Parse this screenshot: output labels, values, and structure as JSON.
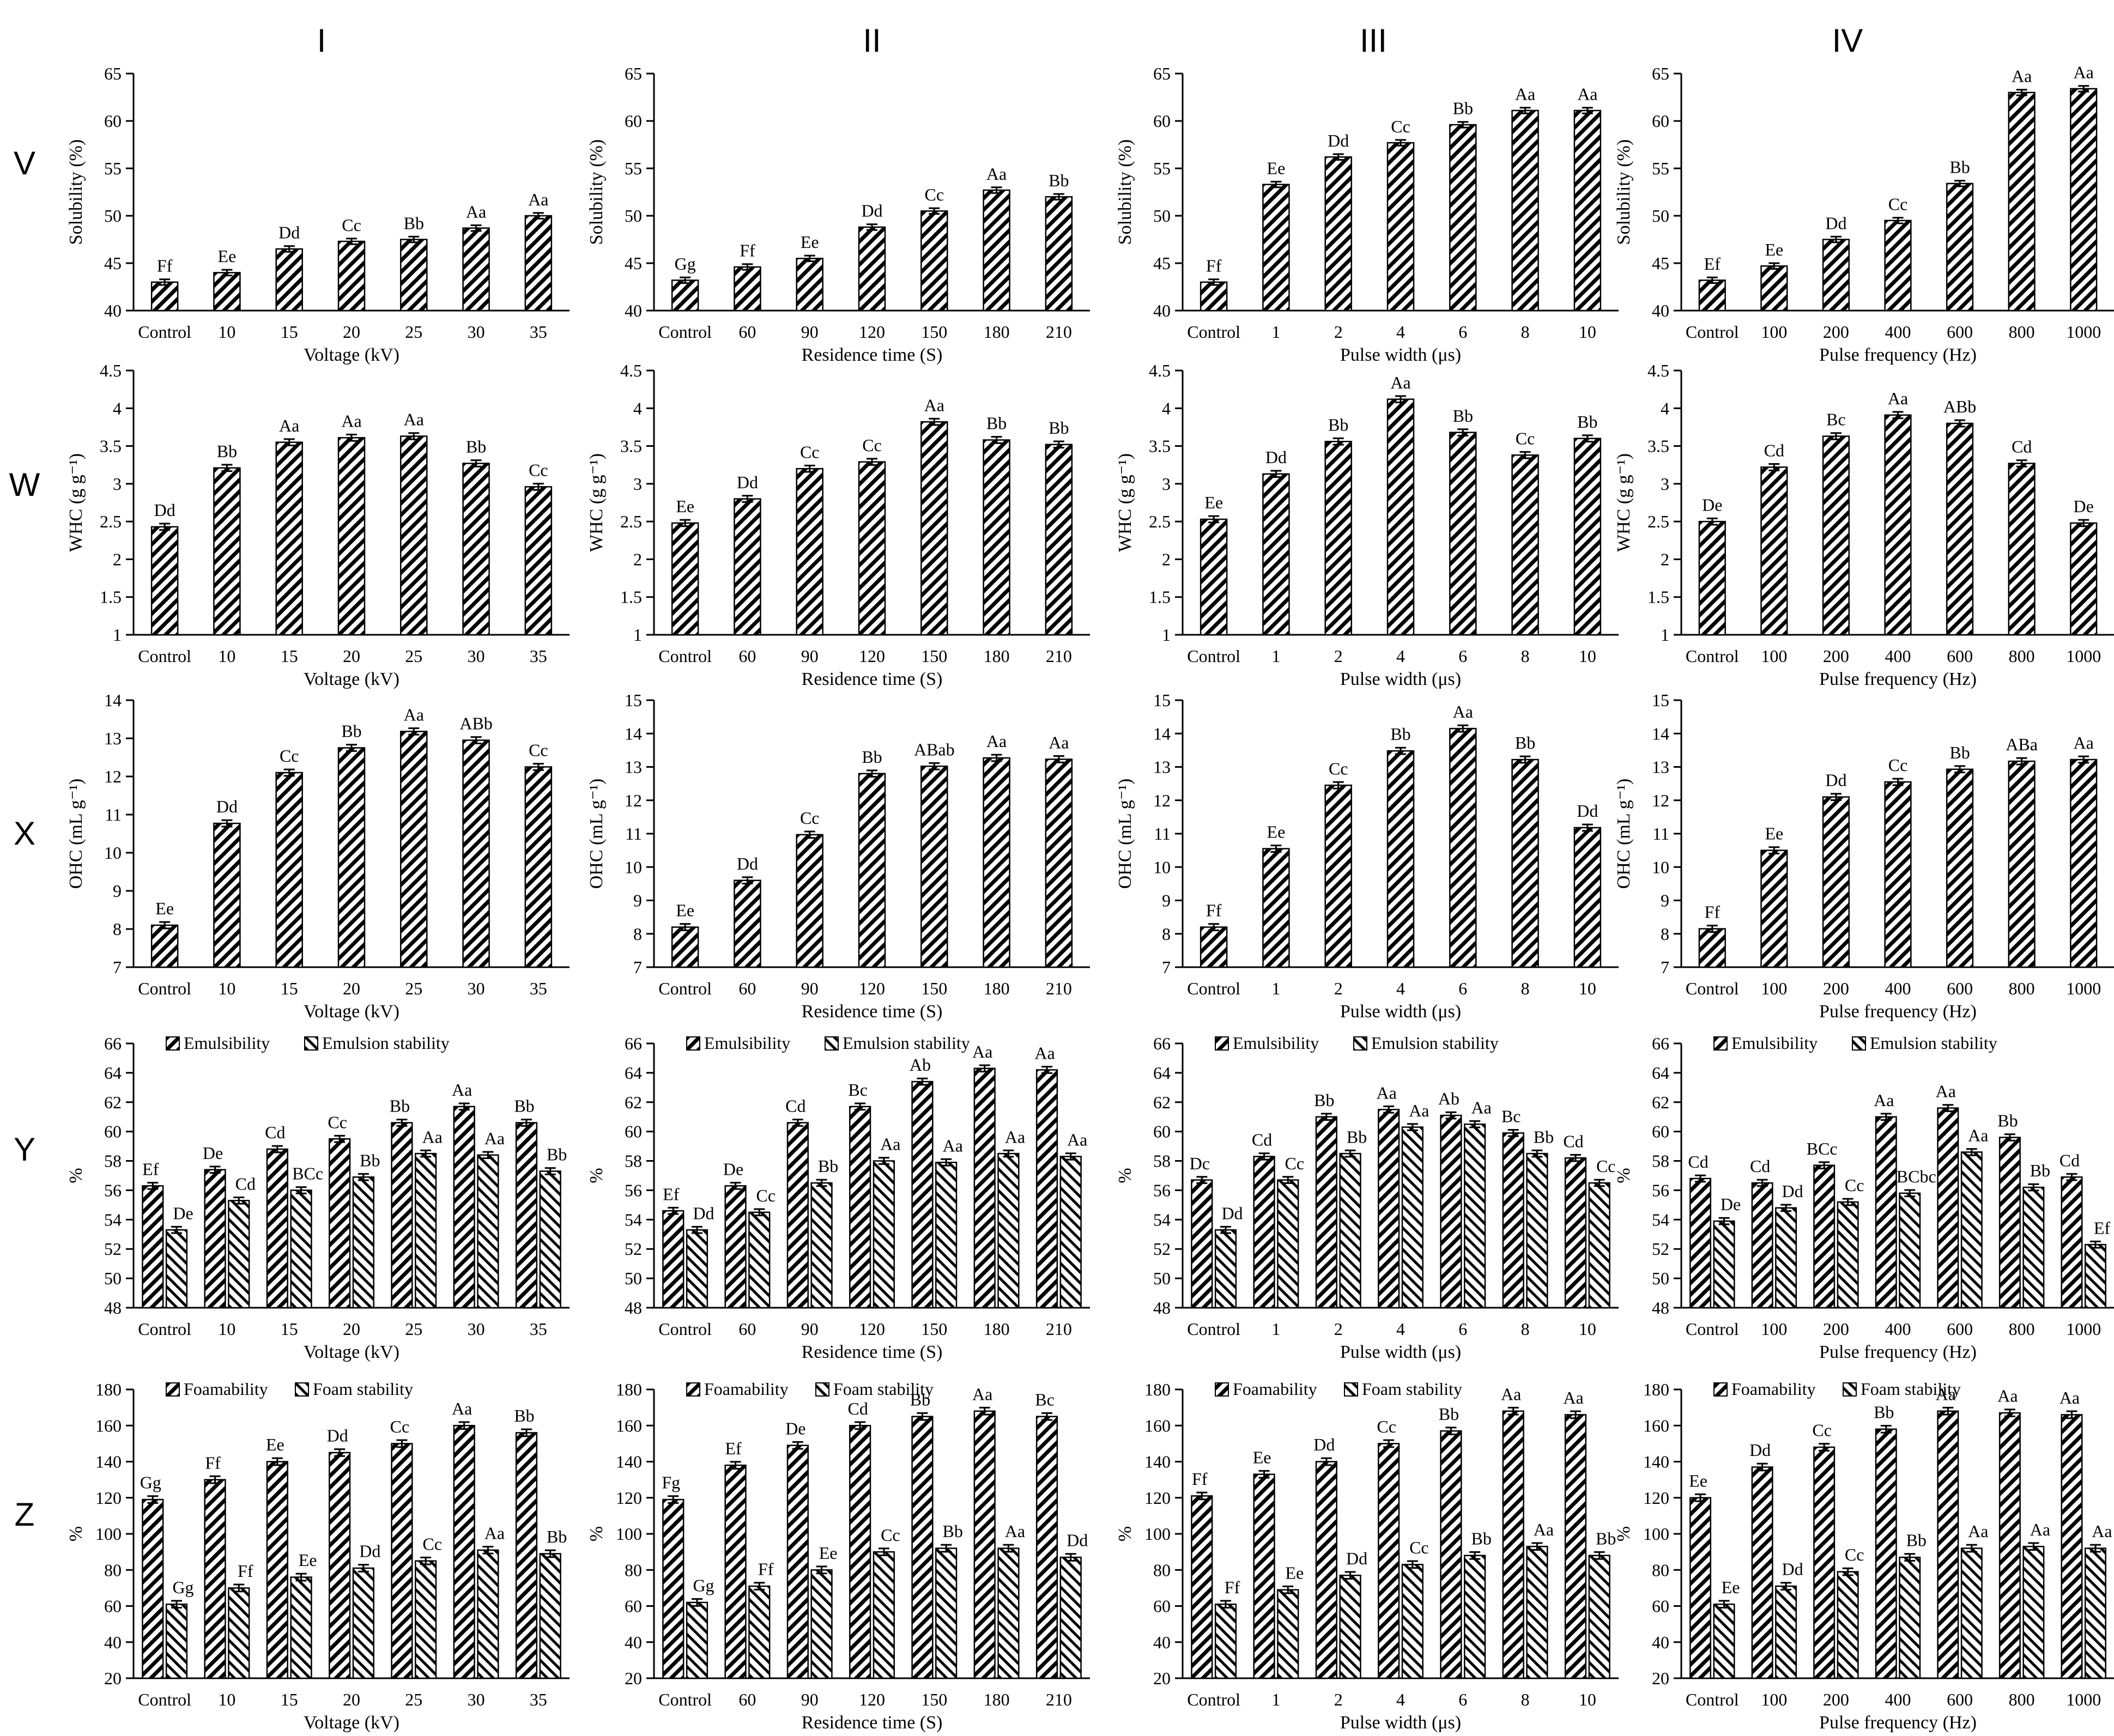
{
  "column_headers": [
    "I",
    "II",
    "III",
    "IV"
  ],
  "row_headers": [
    "V",
    "W",
    "X",
    "Y",
    "Z"
  ],
  "pattern_colors": {
    "bar": "#ffffff",
    "stroke": "#000000"
  },
  "chart_data": [
    {
      "type": "bar",
      "title": "",
      "xlabel": "Voltage (kV)",
      "ylabel": "Solubility (%)",
      "ylim": [
        40,
        65
      ],
      "yticks": [
        40,
        45,
        50,
        55,
        60,
        65
      ],
      "categories": [
        "Control",
        "10",
        "15",
        "20",
        "25",
        "30",
        "35"
      ],
      "series": [
        {
          "values": [
            43.0,
            44.0,
            46.5,
            47.3,
            47.5,
            48.7,
            50.0
          ],
          "labels": [
            "Ff",
            "Ee",
            "Dd",
            "Cc",
            "Bb",
            "Aa",
            "Aa"
          ]
        }
      ]
    },
    {
      "type": "bar",
      "title": "",
      "xlabel": "Residence time (S)",
      "ylabel": "Solubility (%)",
      "ylim": [
        40,
        65
      ],
      "yticks": [
        40,
        45,
        50,
        55,
        60,
        65
      ],
      "categories": [
        "Control",
        "60",
        "90",
        "120",
        "150",
        "180",
        "210"
      ],
      "series": [
        {
          "values": [
            43.2,
            44.6,
            45.5,
            48.8,
            50.5,
            52.7,
            52.0
          ],
          "labels": [
            "Gg",
            "Ff",
            "Ee",
            "Dd",
            "Cc",
            "Aa",
            "Bb"
          ]
        }
      ]
    },
    {
      "type": "bar",
      "title": "",
      "xlabel": "Pulse width (μs)",
      "ylabel": "Solubility (%)",
      "ylim": [
        40,
        65
      ],
      "yticks": [
        40,
        45,
        50,
        55,
        60,
        65
      ],
      "categories": [
        "Control",
        "1",
        "2",
        "4",
        "6",
        "8",
        "10"
      ],
      "series": [
        {
          "values": [
            43.0,
            53.3,
            56.2,
            57.7,
            59.6,
            61.1,
            61.1
          ],
          "labels": [
            "Ff",
            "Ee",
            "Dd",
            "Cc",
            "Bb",
            "Aa",
            "Aa"
          ]
        }
      ]
    },
    {
      "type": "bar",
      "title": "",
      "xlabel": "Pulse frequency (Hz)",
      "ylabel": "Solubility (%)",
      "ylim": [
        40,
        65
      ],
      "yticks": [
        40,
        45,
        50,
        55,
        60,
        65
      ],
      "categories": [
        "Control",
        "100",
        "200",
        "400",
        "600",
        "800",
        "1000"
      ],
      "series": [
        {
          "values": [
            43.2,
            44.7,
            47.5,
            49.5,
            53.4,
            63.0,
            63.4
          ],
          "labels": [
            "Ef",
            "Ee",
            "Dd",
            "Cc",
            "Bb",
            "Aa",
            "Aa"
          ]
        }
      ]
    },
    {
      "type": "bar",
      "title": "",
      "xlabel": "Voltage (kV)",
      "ylabel": "WHC (g g⁻¹)",
      "ylim": [
        1,
        4.5
      ],
      "yticks": [
        1,
        1.5,
        2,
        2.5,
        3,
        3.5,
        4,
        4.5
      ],
      "categories": [
        "Control",
        "10",
        "15",
        "20",
        "25",
        "30",
        "35"
      ],
      "series": [
        {
          "values": [
            2.43,
            3.21,
            3.55,
            3.61,
            3.63,
            3.27,
            2.96
          ],
          "labels": [
            "Dd",
            "Bb",
            "Aa",
            "Aa",
            "Aa",
            "Bb",
            "Cc"
          ]
        }
      ]
    },
    {
      "type": "bar",
      "title": "",
      "xlabel": "Residence time (S)",
      "ylabel": "WHC (g g⁻¹)",
      "ylim": [
        1,
        4.5
      ],
      "yticks": [
        1,
        1.5,
        2,
        2.5,
        3,
        3.5,
        4,
        4.5
      ],
      "categories": [
        "Control",
        "60",
        "90",
        "120",
        "150",
        "180",
        "210"
      ],
      "series": [
        {
          "values": [
            2.48,
            2.8,
            3.2,
            3.29,
            3.82,
            3.58,
            3.52
          ],
          "labels": [
            "Ee",
            "Dd",
            "Cc",
            "Cc",
            "Aa",
            "Bb",
            "Bb"
          ]
        }
      ]
    },
    {
      "type": "bar",
      "title": "",
      "xlabel": "Pulse width (μs)",
      "ylabel": "WHC (g g⁻¹)",
      "ylim": [
        1,
        4.5
      ],
      "yticks": [
        1,
        1.5,
        2,
        2.5,
        3,
        3.5,
        4,
        4.5
      ],
      "categories": [
        "Control",
        "1",
        "2",
        "4",
        "6",
        "8",
        "10"
      ],
      "series": [
        {
          "values": [
            2.53,
            3.13,
            3.56,
            4.12,
            3.68,
            3.38,
            3.6
          ],
          "labels": [
            "Ee",
            "Dd",
            "Bb",
            "Aa",
            "Bb",
            "Cc",
            "Bb"
          ]
        }
      ]
    },
    {
      "type": "bar",
      "title": "",
      "xlabel": "Pulse frequency (Hz)",
      "ylabel": "WHC (g g⁻¹)",
      "ylim": [
        1,
        4.5
      ],
      "yticks": [
        1,
        1.5,
        2,
        2.5,
        3,
        3.5,
        4,
        4.5
      ],
      "categories": [
        "Control",
        "100",
        "200",
        "400",
        "600",
        "800",
        "1000"
      ],
      "series": [
        {
          "values": [
            2.5,
            3.22,
            3.63,
            3.91,
            3.8,
            3.27,
            2.48
          ],
          "labels": [
            "De",
            "Cd",
            "Bc",
            "Aa",
            "ABb",
            "Cd",
            "De"
          ]
        }
      ]
    },
    {
      "type": "bar",
      "title": "",
      "xlabel": "Voltage (kV)",
      "ylabel": "OHC (mL g⁻¹)",
      "ylim": [
        7,
        14
      ],
      "yticks": [
        7,
        8,
        9,
        10,
        11,
        12,
        13,
        14
      ],
      "categories": [
        "Control",
        "10",
        "15",
        "20",
        "25",
        "30",
        "35"
      ],
      "series": [
        {
          "values": [
            8.1,
            10.77,
            12.1,
            12.75,
            13.18,
            12.95,
            12.25
          ],
          "labels": [
            "Ee",
            "Dd",
            "Cc",
            "Bb",
            "Aa",
            "ABb",
            "Cc"
          ]
        }
      ]
    },
    {
      "type": "bar",
      "title": "",
      "xlabel": "Residence time (S)",
      "ylabel": "OHC (mL g⁻¹)",
      "ylim": [
        7,
        15
      ],
      "yticks": [
        7,
        8,
        9,
        10,
        11,
        12,
        13,
        14,
        15
      ],
      "categories": [
        "Control",
        "60",
        "90",
        "120",
        "150",
        "180",
        "210"
      ],
      "series": [
        {
          "values": [
            8.2,
            9.6,
            10.97,
            12.8,
            13.02,
            13.27,
            13.23
          ],
          "labels": [
            "Ee",
            "Dd",
            "Cc",
            "Bb",
            "ABab",
            "Aa",
            "Aa"
          ]
        }
      ]
    },
    {
      "type": "bar",
      "title": "",
      "xlabel": "Pulse width (μs)",
      "ylabel": "OHC (mL g⁻¹)",
      "ylim": [
        7,
        15
      ],
      "yticks": [
        7,
        8,
        9,
        10,
        11,
        12,
        13,
        14,
        15
      ],
      "categories": [
        "Control",
        "1",
        "2",
        "4",
        "6",
        "8",
        "10"
      ],
      "series": [
        {
          "values": [
            8.2,
            10.55,
            12.45,
            13.48,
            14.15,
            13.22,
            11.18
          ],
          "labels": [
            "Ff",
            "Ee",
            "Cc",
            "Bb",
            "Aa",
            "Bb",
            "Dd"
          ]
        }
      ]
    },
    {
      "type": "bar",
      "title": "",
      "xlabel": "Pulse frequency (Hz)",
      "ylabel": "OHC (mL g⁻¹)",
      "ylim": [
        7,
        15
      ],
      "yticks": [
        7,
        8,
        9,
        10,
        11,
        12,
        13,
        14,
        15
      ],
      "categories": [
        "Control",
        "100",
        "200",
        "400",
        "600",
        "800",
        "1000"
      ],
      "series": [
        {
          "values": [
            8.15,
            10.5,
            12.1,
            12.55,
            12.93,
            13.17,
            13.22
          ],
          "labels": [
            "Ff",
            "Ee",
            "Dd",
            "Cc",
            "Bb",
            "ABa",
            "Aa"
          ]
        }
      ]
    },
    {
      "type": "bar",
      "title": "",
      "xlabel": "Voltage (kV)",
      "ylabel": "%",
      "ylim": [
        48,
        66
      ],
      "yticks": [
        48,
        50,
        52,
        54,
        56,
        58,
        60,
        62,
        64,
        66
      ],
      "categories": [
        "Control",
        "10",
        "15",
        "20",
        "25",
        "30",
        "35"
      ],
      "series": [
        {
          "name": "Emulsibility",
          "values": [
            56.3,
            57.4,
            58.8,
            59.5,
            60.6,
            61.7,
            60.6
          ],
          "labels": [
            "Ef",
            "De",
            "Cd",
            "Cc",
            "Bb",
            "Aa",
            "Bb"
          ]
        },
        {
          "name": "Emulsion stability",
          "values": [
            53.3,
            55.3,
            56.0,
            56.9,
            58.5,
            58.4,
            57.3
          ],
          "labels": [
            "De",
            "Cd",
            "BCc",
            "Bb",
            "Aa",
            "Aa",
            "Bb"
          ]
        }
      ]
    },
    {
      "type": "bar",
      "title": "",
      "xlabel": "Residence time (S)",
      "ylabel": "%",
      "ylim": [
        48,
        66
      ],
      "yticks": [
        48,
        50,
        52,
        54,
        56,
        58,
        60,
        62,
        64,
        66
      ],
      "categories": [
        "Control",
        "60",
        "90",
        "120",
        "150",
        "180",
        "210"
      ],
      "series": [
        {
          "name": "Emulsibility",
          "values": [
            54.6,
            56.3,
            60.6,
            61.7,
            63.4,
            64.3,
            64.2
          ],
          "labels": [
            "Ef",
            "De",
            "Cd",
            "Bc",
            "Ab",
            "Aa",
            "Aa"
          ]
        },
        {
          "name": "Emulsion stability",
          "values": [
            53.3,
            54.5,
            56.5,
            58.0,
            57.9,
            58.5,
            58.3
          ],
          "labels": [
            "Dd",
            "Cc",
            "Bb",
            "Aa",
            "Aa",
            "Aa",
            "Aa"
          ]
        }
      ]
    },
    {
      "type": "bar",
      "title": "",
      "xlabel": "Pulse width (μs)",
      "ylabel": "%",
      "ylim": [
        48,
        66
      ],
      "yticks": [
        48,
        50,
        52,
        54,
        56,
        58,
        60,
        62,
        64,
        66
      ],
      "categories": [
        "Control",
        "1",
        "2",
        "4",
        "6",
        "8",
        "10"
      ],
      "series": [
        {
          "name": "Emulsibility",
          "values": [
            56.7,
            58.3,
            61.0,
            61.5,
            61.1,
            59.9,
            58.2
          ],
          "labels": [
            "Dc",
            "Cd",
            "Bb",
            "Aa",
            "Ab",
            "Bc",
            "Cd"
          ]
        },
        {
          "name": "Emulsion stability",
          "values": [
            53.3,
            56.7,
            58.5,
            60.3,
            60.5,
            58.5,
            56.5
          ],
          "labels": [
            "Dd",
            "Cc",
            "Bb",
            "Aa",
            "Aa",
            "Bb",
            "Cc"
          ]
        }
      ]
    },
    {
      "type": "bar",
      "title": "",
      "xlabel": "Pulse frequency (Hz)",
      "ylabel": "%",
      "ylim": [
        48,
        66
      ],
      "yticks": [
        48,
        50,
        52,
        54,
        56,
        58,
        60,
        62,
        64,
        66
      ],
      "categories": [
        "Control",
        "100",
        "200",
        "400",
        "600",
        "800",
        "1000"
      ],
      "series": [
        {
          "name": "Emulsibility",
          "values": [
            56.8,
            56.5,
            57.7,
            61.0,
            61.6,
            59.6,
            56.9
          ],
          "labels": [
            "Cd",
            "Cd",
            "BCc",
            "Aa",
            "Aa",
            "Bb",
            "Cd"
          ]
        },
        {
          "name": "Emulsion stability",
          "values": [
            53.9,
            54.8,
            55.2,
            55.8,
            58.6,
            56.2,
            52.3
          ],
          "labels": [
            "De",
            "Dd",
            "Cc",
            "BCbc",
            "Aa",
            "Bb",
            "Ef"
          ]
        }
      ]
    },
    {
      "type": "bar",
      "title": "",
      "xlabel": "Voltage (kV)",
      "ylabel": "%",
      "ylim": [
        20,
        180
      ],
      "yticks": [
        20,
        40,
        60,
        80,
        100,
        120,
        140,
        160,
        180
      ],
      "categories": [
        "Control",
        "10",
        "15",
        "20",
        "25",
        "30",
        "35"
      ],
      "series": [
        {
          "name": "Foamability",
          "values": [
            119,
            130,
            140,
            145,
            150,
            160,
            156
          ],
          "labels": [
            "Gg",
            "Ff",
            "Ee",
            "Dd",
            "Cc",
            "Aa",
            "Bb"
          ]
        },
        {
          "name": "Foam stability",
          "values": [
            61,
            70,
            76,
            81,
            85,
            91,
            89
          ],
          "labels": [
            "Gg",
            "Ff",
            "Ee",
            "Dd",
            "Cc",
            "Aa",
            "Bb"
          ]
        }
      ]
    },
    {
      "type": "bar",
      "title": "",
      "xlabel": "Residence time (S)",
      "ylabel": "%",
      "ylim": [
        20,
        180
      ],
      "yticks": [
        20,
        40,
        60,
        80,
        100,
        120,
        140,
        160,
        180
      ],
      "categories": [
        "Control",
        "60",
        "90",
        "120",
        "150",
        "180",
        "210"
      ],
      "series": [
        {
          "name": "Foamability",
          "values": [
            119,
            138,
            149,
            160,
            165,
            168,
            165
          ],
          "labels": [
            "Fg",
            "Ef",
            "De",
            "Cd",
            "Bb",
            "Aa",
            "Bc"
          ]
        },
        {
          "name": "Foam stability",
          "values": [
            62,
            71,
            80,
            90,
            92,
            92,
            87
          ],
          "labels": [
            "Gg",
            "Ff",
            "Ee",
            "Cc",
            "Bb",
            "Aa",
            "Dd"
          ]
        }
      ]
    },
    {
      "type": "bar",
      "title": "",
      "xlabel": "Pulse width (μs)",
      "ylabel": "%",
      "ylim": [
        20,
        180
      ],
      "yticks": [
        20,
        40,
        60,
        80,
        100,
        120,
        140,
        160,
        180
      ],
      "categories": [
        "Control",
        "1",
        "2",
        "4",
        "6",
        "8",
        "10"
      ],
      "series": [
        {
          "name": "Foamability",
          "values": [
            121,
            133,
            140,
            150,
            157,
            168,
            166
          ],
          "labels": [
            "Ff",
            "Ee",
            "Dd",
            "Cc",
            "Bb",
            "Aa",
            "Aa"
          ]
        },
        {
          "name": "Foam stability",
          "values": [
            61,
            69,
            77,
            83,
            88,
            93,
            88
          ],
          "labels": [
            "Ff",
            "Ee",
            "Dd",
            "Cc",
            "Bb",
            "Aa",
            "Bb"
          ]
        }
      ]
    },
    {
      "type": "bar",
      "title": "",
      "xlabel": "Pulse frequency (Hz)",
      "ylabel": "%",
      "ylim": [
        20,
        180
      ],
      "yticks": [
        20,
        40,
        60,
        80,
        100,
        120,
        140,
        160,
        180
      ],
      "categories": [
        "Control",
        "100",
        "200",
        "400",
        "600",
        "800",
        "1000"
      ],
      "series": [
        {
          "name": "Foamability",
          "values": [
            120,
            137,
            148,
            158,
            168,
            167,
            166
          ],
          "labels": [
            "Ee",
            "Dd",
            "Cc",
            "Bb",
            "Aa",
            "Aa",
            "Aa"
          ]
        },
        {
          "name": "Foam stability",
          "values": [
            61,
            71,
            79,
            87,
            92,
            93,
            92
          ],
          "labels": [
            "Ee",
            "Dd",
            "Cc",
            "Bb",
            "Aa",
            "Aa",
            "Aa"
          ]
        }
      ]
    }
  ]
}
